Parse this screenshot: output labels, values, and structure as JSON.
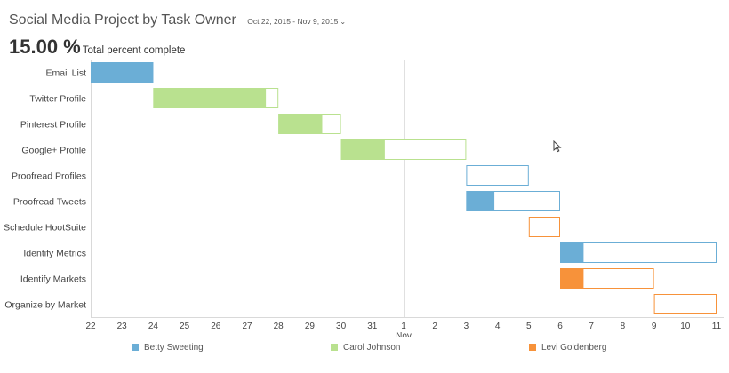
{
  "header": {
    "title": "Social Media Project by Task Owner",
    "date_range": "Oct 22, 2015 - Nov 9, 2015",
    "range_chevron": "⌄"
  },
  "summary": {
    "percent": "15.00 %",
    "label": "Total percent complete"
  },
  "colors": {
    "Betty Sweeting": "#6baed6",
    "Carol Johnson": "#b9e18f",
    "Levi Goldenberg": "#f7923a"
  },
  "chart_data": {
    "type": "gantt",
    "tasks": [
      {
        "name": "Email List",
        "owner": "Betty Sweeting",
        "start": 22,
        "end": 24,
        "complete_until": 24
      },
      {
        "name": "Twitter Profile",
        "owner": "Carol Johnson",
        "start": 24,
        "end": 28,
        "complete_until": 27.6
      },
      {
        "name": "Pinterest Profile",
        "owner": "Carol Johnson",
        "start": 28,
        "end": 30,
        "complete_until": 29.4
      },
      {
        "name": "Google+ Profile",
        "owner": "Carol Johnson",
        "start": 30,
        "end": 34,
        "complete_until": 31.4
      },
      {
        "name": "Proofread Profiles",
        "owner": "Betty Sweeting",
        "start": 34,
        "end": 36,
        "complete_until": 34
      },
      {
        "name": "Proofread Tweets",
        "owner": "Betty Sweeting",
        "start": 34,
        "end": 37,
        "complete_until": 34.9
      },
      {
        "name": "Schedule HootSuite",
        "owner": "Levi Goldenberg",
        "start": 36,
        "end": 37,
        "complete_until": 36
      },
      {
        "name": "Identify Metrics",
        "owner": "Betty Sweeting",
        "start": 37,
        "end": 42,
        "complete_until": 37.75
      },
      {
        "name": "Identify Markets",
        "owner": "Levi Goldenberg",
        "start": 37,
        "end": 40,
        "complete_until": 37.75
      },
      {
        "name": "Organize by Market",
        "owner": "Levi Goldenberg",
        "start": 40,
        "end": 42,
        "complete_until": 40
      }
    ],
    "x_ticks": [
      {
        "value": 22,
        "label": "22"
      },
      {
        "value": 23,
        "label": "23"
      },
      {
        "value": 24,
        "label": "24"
      },
      {
        "value": 25,
        "label": "25"
      },
      {
        "value": 26,
        "label": "26"
      },
      {
        "value": 27,
        "label": "27"
      },
      {
        "value": 28,
        "label": "28"
      },
      {
        "value": 29,
        "label": "29"
      },
      {
        "value": 30,
        "label": "30"
      },
      {
        "value": 31,
        "label": "31"
      },
      {
        "value": 32,
        "label": "1"
      },
      {
        "value": 33,
        "label": "2"
      },
      {
        "value": 34,
        "label": "3"
      },
      {
        "value": 35,
        "label": "4"
      },
      {
        "value": 36,
        "label": "5"
      },
      {
        "value": 37,
        "label": "6"
      },
      {
        "value": 38,
        "label": "7"
      },
      {
        "value": 39,
        "label": "8"
      },
      {
        "value": 40,
        "label": "9"
      },
      {
        "value": 41,
        "label": "10"
      },
      {
        "value": 42,
        "label": "11"
      }
    ],
    "month_marker": {
      "value": 32,
      "label": "Nov"
    },
    "xlim": [
      22,
      42
    ],
    "legend": [
      "Betty Sweeting",
      "Carol Johnson",
      "Levi Goldenberg"
    ],
    "legend_position": "bottom"
  }
}
